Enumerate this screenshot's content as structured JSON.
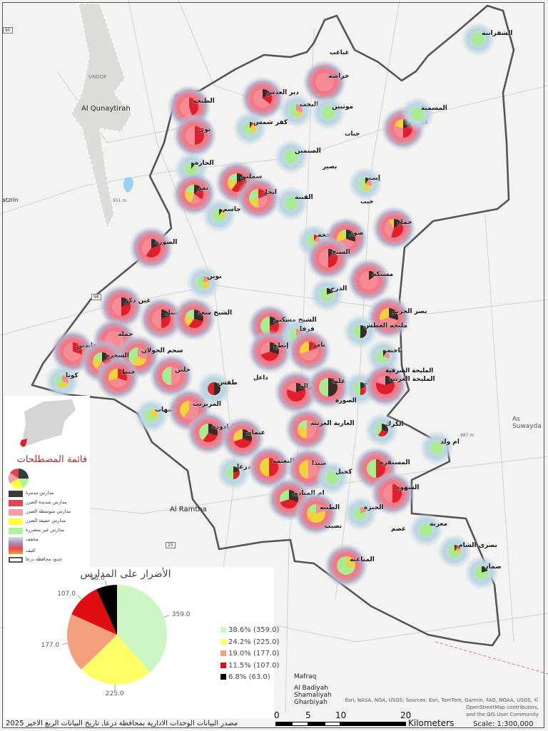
{
  "basemap": {
    "places": [
      "Al Qunaytirah",
      "UNDOF",
      "Al Ramtha",
      "As Suwayda",
      "Mafraq",
      "Al Badiyah",
      "Shamaliyah",
      "Gharbiyah",
      "atzrin",
      "951 m",
      "887 m"
    ],
    "road_shields": [
      "90",
      "98",
      "25"
    ],
    "attribution": [
      "Esri, NASA, NGA, USGS; Sources: Esri, TomTom, Garmin, FAO, NOAA, USGS, © OpenStreetMap contributors,",
      "and the GIS User Community"
    ]
  },
  "map_markers": [
    {
      "name": "الشقرانية",
      "heat": "cool",
      "pie": [
        0,
        0,
        0,
        0,
        1
      ]
    },
    {
      "name": "خراصة",
      "heat": "hot",
      "pie": [
        0,
        0,
        1,
        0,
        0
      ]
    },
    {
      "name": "دير العدس",
      "heat": "hot",
      "pie": [
        0.15,
        0.2,
        0.65,
        0,
        0
      ]
    },
    {
      "name": "الطيحة",
      "heat": "hot",
      "pie": [
        0,
        0.45,
        0.55,
        0,
        0
      ]
    },
    {
      "name": "دير البخت",
      "heat": "cool",
      "pie": [
        0,
        0,
        0.3,
        0.2,
        0.5
      ]
    },
    {
      "name": "موثبين",
      "heat": "cool",
      "pie": [
        0,
        0,
        0,
        0,
        1
      ]
    },
    {
      "name": "كفر شمس",
      "heat": "cool",
      "pie": [
        0.05,
        0.05,
        0,
        0.3,
        0.6
      ]
    },
    {
      "name": "نوى",
      "heat": "hot",
      "pie": [
        0,
        0.5,
        0.5,
        0,
        0
      ]
    },
    {
      "name": "الحارة",
      "heat": "cool",
      "pie": [
        0.1,
        0,
        0,
        0,
        0.9
      ]
    },
    {
      "name": "الصنمين",
      "heat": "cool",
      "pie": [
        0,
        0,
        0,
        0,
        1
      ]
    },
    {
      "name": "سملين",
      "heat": "hot",
      "pie": [
        0.2,
        0.4,
        0,
        0.2,
        0.2
      ]
    },
    {
      "name": "نمر",
      "heat": "hot",
      "pie": [
        0.15,
        0.2,
        0.2,
        0.25,
        0.2
      ]
    },
    {
      "name": "انخل",
      "heat": "hot",
      "pie": [
        0,
        0.2,
        0.3,
        0.2,
        0.3
      ]
    },
    {
      "name": "القنية",
      "heat": "cool",
      "pie": [
        0,
        0,
        0,
        0,
        1
      ]
    },
    {
      "name": "جاسم",
      "heat": "cool",
      "pie": [
        0.1,
        0,
        0,
        0.2,
        0.7
      ]
    },
    {
      "name": "إيب",
      "heat": "cool",
      "pie": [
        0.1,
        0,
        0.2,
        0.2,
        0.5
      ]
    },
    {
      "name": "الغارية",
      "heat": "hot",
      "pie": [
        0.2,
        0.3,
        0.3,
        0.2,
        0
      ]
    },
    {
      "name": "المسمية",
      "heat": "cool",
      "pie": [
        0,
        0,
        0,
        0,
        1
      ]
    },
    {
      "name": "جمل",
      "heat": "hot",
      "pie": [
        0.15,
        0.4,
        0.35,
        0.1,
        0
      ]
    },
    {
      "name": "محجة",
      "heat": "cool",
      "pie": [
        0,
        0.1,
        0.2,
        0.2,
        0.5
      ]
    },
    {
      "name": "صور",
      "heat": "hot",
      "pie": [
        0.3,
        0,
        0.4,
        0.2,
        0.1
      ]
    },
    {
      "name": "الشيخ",
      "heat": "hot",
      "pie": [
        0.1,
        0.4,
        0.5,
        0,
        0
      ]
    },
    {
      "name": "مسيكة",
      "heat": "hot",
      "pie": [
        0.15,
        0,
        0.85,
        0,
        0
      ]
    },
    {
      "name": "الدرج",
      "heat": "cool",
      "pie": [
        0.2,
        0,
        0,
        0,
        0.8
      ]
    },
    {
      "name": "الصورة",
      "heat": "hot",
      "pie": [
        0.2,
        0.4,
        0.4,
        0,
        0
      ]
    },
    {
      "name": "نوين",
      "heat": "cool",
      "pie": [
        0,
        0,
        0.2,
        0.3,
        0.5
      ]
    },
    {
      "name": "عين ذكر",
      "heat": "hot",
      "pie": [
        0.2,
        0.3,
        0.5,
        0,
        0
      ]
    },
    {
      "name": "تسيل",
      "heat": "hot",
      "pie": [
        0.2,
        0.3,
        0.5,
        0,
        0
      ]
    },
    {
      "name": "الشيخ سعد",
      "heat": "hot",
      "pie": [
        0.3,
        0.3,
        0,
        0.2,
        0.2
      ]
    },
    {
      "name": "الشيخ مسكين",
      "heat": "hot",
      "pie": [
        0.2,
        0.3,
        0,
        0,
        0.5
      ]
    },
    {
      "name": "قرفا",
      "heat": "cool",
      "pie": [
        0,
        0,
        0.3,
        0,
        0.7
      ]
    },
    {
      "name": "نامر",
      "heat": "hot",
      "pie": [
        0,
        0.2,
        0.5,
        0.3,
        0
      ]
    },
    {
      "name": "إبطع",
      "heat": "hot",
      "pie": [
        0.3,
        0.4,
        0.3,
        0,
        0
      ]
    },
    {
      "name": "بصر الحرير",
      "heat": "hot",
      "pie": [
        0.3,
        0,
        0.4,
        0.3,
        0
      ]
    },
    {
      "name": "مليحة العطش",
      "heat": "cool",
      "pie": [
        0.5,
        0,
        0,
        0,
        0.5
      ]
    },
    {
      "name": "ناحتة",
      "heat": "cool",
      "pie": [
        0.1,
        0,
        0.2,
        0,
        0.7
      ]
    },
    {
      "name": "جملة",
      "heat": "hot",
      "pie": [
        0,
        0,
        1,
        0,
        0
      ]
    },
    {
      "name": "سحم الجولان",
      "heat": "hot",
      "pie": [
        0,
        0,
        0.3,
        0.3,
        0.4
      ]
    },
    {
      "name": "عابدين",
      "heat": "hot",
      "pie": [
        0,
        0.3,
        0.7,
        0,
        0
      ]
    },
    {
      "name": "الشجرة",
      "heat": "hot",
      "pie": [
        0.15,
        0.2,
        0.25,
        0.2,
        0.2
      ]
    },
    {
      "name": "حيط",
      "heat": "hot",
      "pie": [
        0,
        0.3,
        0.4,
        0.3,
        0
      ]
    },
    {
      "name": "كويا",
      "heat": "cool",
      "pie": [
        0,
        0,
        0.3,
        0.3,
        0.4
      ]
    },
    {
      "name": "جلين",
      "heat": "hot",
      "pie": [
        0,
        0,
        0.5,
        0,
        0.5
      ]
    },
    {
      "name": "طفس",
      "heat": "cool",
      "pie": [
        0.5,
        0.5,
        0,
        0,
        0
      ]
    },
    {
      "name": "خربة غزالة",
      "heat": "hot",
      "pie": [
        0.2,
        0.6,
        0.2,
        0,
        0
      ]
    },
    {
      "name": "علما",
      "heat": "hot",
      "pie": [
        0.5,
        0,
        0,
        0,
        0.5
      ]
    },
    {
      "name": "الحراك",
      "heat": "cool",
      "pie": [
        0.2,
        0.3,
        0,
        0,
        0.5
      ]
    },
    {
      "name": "المليحة الغربية",
      "heat": "hot",
      "pie": [
        0.2,
        0.6,
        0.2,
        0,
        0
      ]
    },
    {
      "name": "تل شهاب",
      "heat": "cool",
      "pie": [
        0,
        0,
        0,
        0.3,
        0.7
      ]
    },
    {
      "name": "المزيريب",
      "heat": "hot",
      "pie": [
        0,
        0,
        0.6,
        0.4,
        0
      ]
    },
    {
      "name": "اليادودة",
      "heat": "hot",
      "pie": [
        0.3,
        0.3,
        0,
        0,
        0.4
      ]
    },
    {
      "name": "عتمان",
      "heat": "hot",
      "pie": [
        0.3,
        0.4,
        0,
        0.3,
        0
      ]
    },
    {
      "name": "الغارية الغربية",
      "heat": "hot",
      "pie": [
        0,
        0,
        0.5,
        0.3,
        0.2
      ]
    },
    {
      "name": "الكرك",
      "heat": "cool",
      "pie": [
        0.3,
        0.3,
        0,
        0,
        0.4
      ]
    },
    {
      "name": "ام ولد",
      "heat": "cool",
      "pie": [
        0,
        0,
        0,
        0,
        1
      ]
    },
    {
      "name": "درعا",
      "heat": "cool",
      "pie": [
        0.2,
        0.3,
        0,
        0,
        0.5
      ]
    },
    {
      "name": "النعيمة",
      "heat": "hot",
      "pie": [
        0,
        0.5,
        0,
        0.5,
        0
      ]
    },
    {
      "name": "صيدا",
      "heat": "hot",
      "pie": [
        0,
        0,
        0.5,
        0.5,
        0
      ]
    },
    {
      "name": "كحيل",
      "heat": "cool",
      "pie": [
        0,
        0,
        0,
        0,
        1
      ]
    },
    {
      "name": "المسيفرة",
      "heat": "hot",
      "pie": [
        0,
        0.5,
        0,
        0,
        0.5
      ]
    },
    {
      "name": "السهوة",
      "heat": "hot",
      "pie": [
        0,
        0.5,
        0.5,
        0,
        0
      ]
    },
    {
      "name": "ام المياذن",
      "heat": "hot",
      "pie": [
        0.3,
        0.4,
        0,
        0,
        0.3
      ]
    },
    {
      "name": "الطيبة",
      "heat": "hot",
      "pie": [
        0,
        0,
        0.2,
        0.6,
        0.2
      ]
    },
    {
      "name": "الجيزة",
      "heat": "cool",
      "pie": [
        0,
        0,
        0.2,
        0,
        0.8
      ]
    },
    {
      "name": "معربة",
      "heat": "cool",
      "pie": [
        0,
        0,
        0,
        0,
        1
      ]
    },
    {
      "name": "بصرى الشام",
      "heat": "cool",
      "pie": [
        0.05,
        0.05,
        0.1,
        0.1,
        0.7
      ]
    },
    {
      "name": "المتاعية",
      "heat": "hot",
      "pie": [
        0,
        0,
        0,
        0.3,
        0.7
      ]
    },
    {
      "name": "صماد",
      "heat": "cool",
      "pie": [
        0.2,
        0,
        0,
        0,
        0.8
      ]
    }
  ],
  "map_labels": [
    "غباغب",
    "جباب",
    "بصير",
    "خبب",
    "داعل",
    "نصيب",
    "غصم",
    "المليحة الشرقية",
    "الصورة"
  ],
  "legend": {
    "title": "قائمة المصطلحات",
    "items": [
      {
        "label": "مدارس مدمرة",
        "color": "#3a3a3a"
      },
      {
        "label": "مدارس شديدة الضرر",
        "color": "#e0464f"
      },
      {
        "label": "مدارس متوسطة الضرر",
        "color": "#f4a0a6"
      },
      {
        "label": "مدارس خفيفة الضرر",
        "color": "#ffff40"
      },
      {
        "label": "مدارس غير متضررة",
        "color": "#a8f59a"
      },
      {
        "label": "مخفف"
      },
      {
        "label": "كثيف"
      },
      {
        "label": "حدود محافظة درعا"
      }
    ]
  },
  "chart_data": {
    "type": "pie",
    "title": "الأضرار على المدارس",
    "values": [
      359.0,
      225.0,
      177.0,
      107.0,
      63.0
    ],
    "data_labels": [
      "359.0",
      "225.0",
      "177.0",
      "107.0",
      "63.0"
    ],
    "legend_entries": [
      "38.6% (359.0)",
      "24.2% (225.0)",
      "19.0% (177.0)",
      "11.5% (107.0)",
      "6.8% (63.0)"
    ],
    "colors": [
      "#ccf7c4",
      "#ffff66",
      "#f4a07e",
      "#e00d10",
      "#000000"
    ],
    "legend_placement": "right"
  },
  "footer": {
    "source": "مصدر البيانات الوحدات الادارية بمحافظة درعا, تاريخ البيانات الربع الاخير 2025",
    "scale_ticks": [
      "0",
      "5",
      "10",
      "20"
    ],
    "scale_unit": "Kilometers",
    "scale_ratio": "Scale: 1:300,000"
  }
}
